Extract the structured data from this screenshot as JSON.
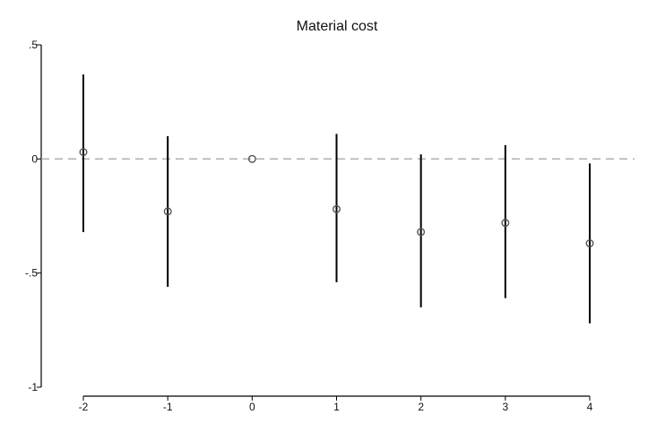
{
  "chart_data": {
    "type": "scatter",
    "title": "Material cost",
    "xlabel": "",
    "ylabel": "",
    "x": [
      -2,
      -1,
      0,
      1,
      2,
      3,
      4
    ],
    "series": [
      {
        "estimate": [
          0.03,
          -0.23,
          0.0,
          -0.22,
          -0.32,
          -0.28,
          -0.37
        ],
        "ci_low": [
          -0.32,
          -0.56,
          0.0,
          -0.54,
          -0.65,
          -0.61,
          -0.72
        ],
        "ci_high": [
          0.37,
          0.1,
          0.0,
          0.11,
          0.02,
          0.06,
          -0.02
        ]
      }
    ],
    "xlim": [
      -2,
      4
    ],
    "ylim": [
      -1,
      0.5
    ],
    "xticks": [
      -2,
      -1,
      0,
      1,
      2,
      3,
      4
    ],
    "xtick_labels": [
      "-2",
      "-1",
      "0",
      "1",
      "2",
      "3",
      "4"
    ],
    "yticks": [
      0.5,
      0,
      -0.5,
      -1
    ],
    "ytick_labels": [
      ".5",
      "0",
      "-.5",
      "-1"
    ],
    "reference_line": {
      "y": 0,
      "style": "dashed"
    },
    "grid": false,
    "legend": "none",
    "colors": {
      "interval": "#000000",
      "marker": "#555555",
      "reference": "#aaaaaa",
      "axis": "#000000"
    }
  }
}
